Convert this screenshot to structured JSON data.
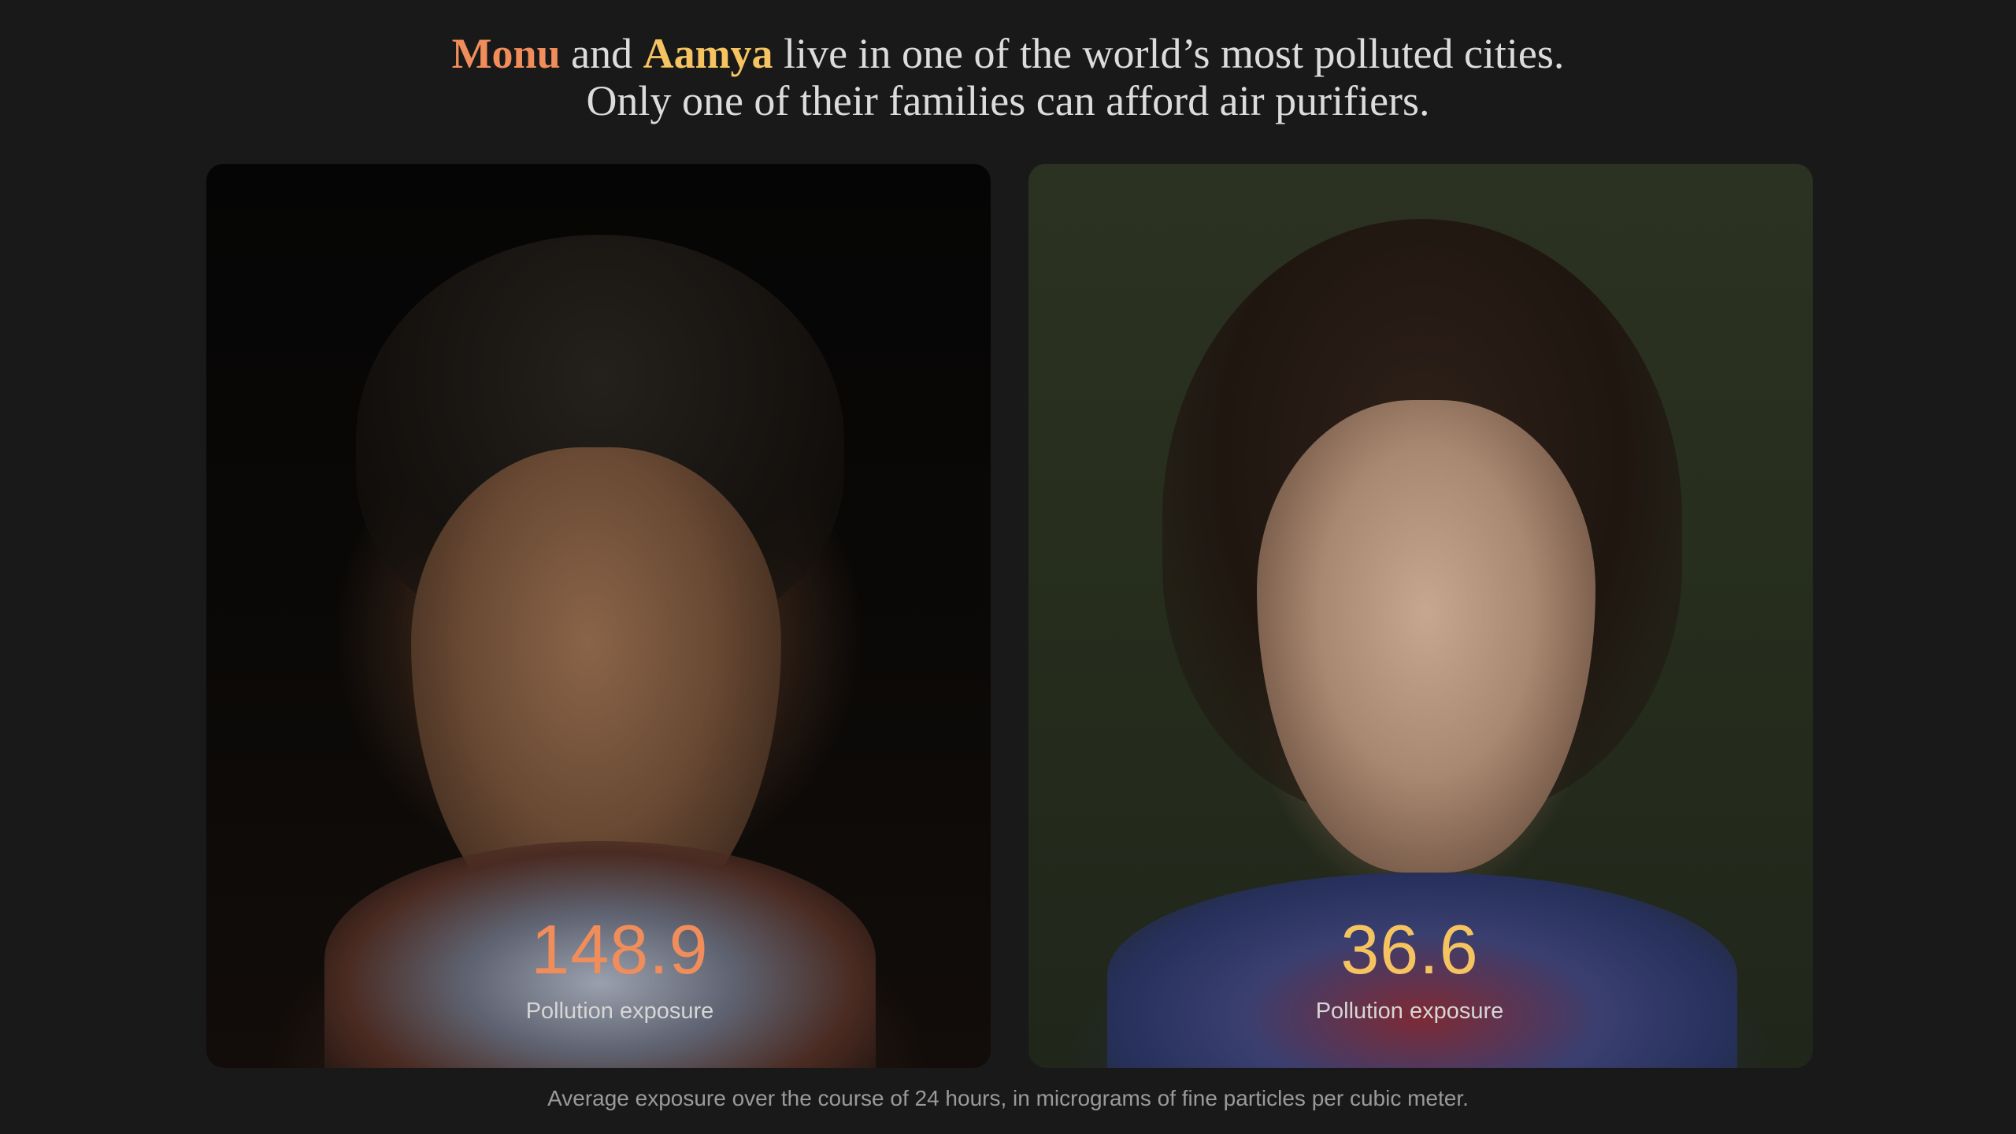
{
  "headline": {
    "name_1": "Monu",
    "connector": "and",
    "name_2": "Aamya",
    "line_1_rest": "live in one of the world’s most polluted cities.",
    "line_2": "Only one of their families can afford air purifiers."
  },
  "cards": [
    {
      "name": "Monu",
      "value": "148.9",
      "label": "Pollution exposure",
      "accent_color": "#f08d5a"
    },
    {
      "name": "Aamya",
      "value": "36.6",
      "label": "Pollution exposure",
      "accent_color": "#f5c461"
    }
  ],
  "caption": "Average exposure over the course of 24 hours, in micrograms of fine particles per cubic meter.",
  "colors": {
    "background": "#191919",
    "headline_text": "#dcdcdc",
    "monu": "#f08d5a",
    "aamya": "#f5c461",
    "caption_text": "#9a9a9a"
  }
}
